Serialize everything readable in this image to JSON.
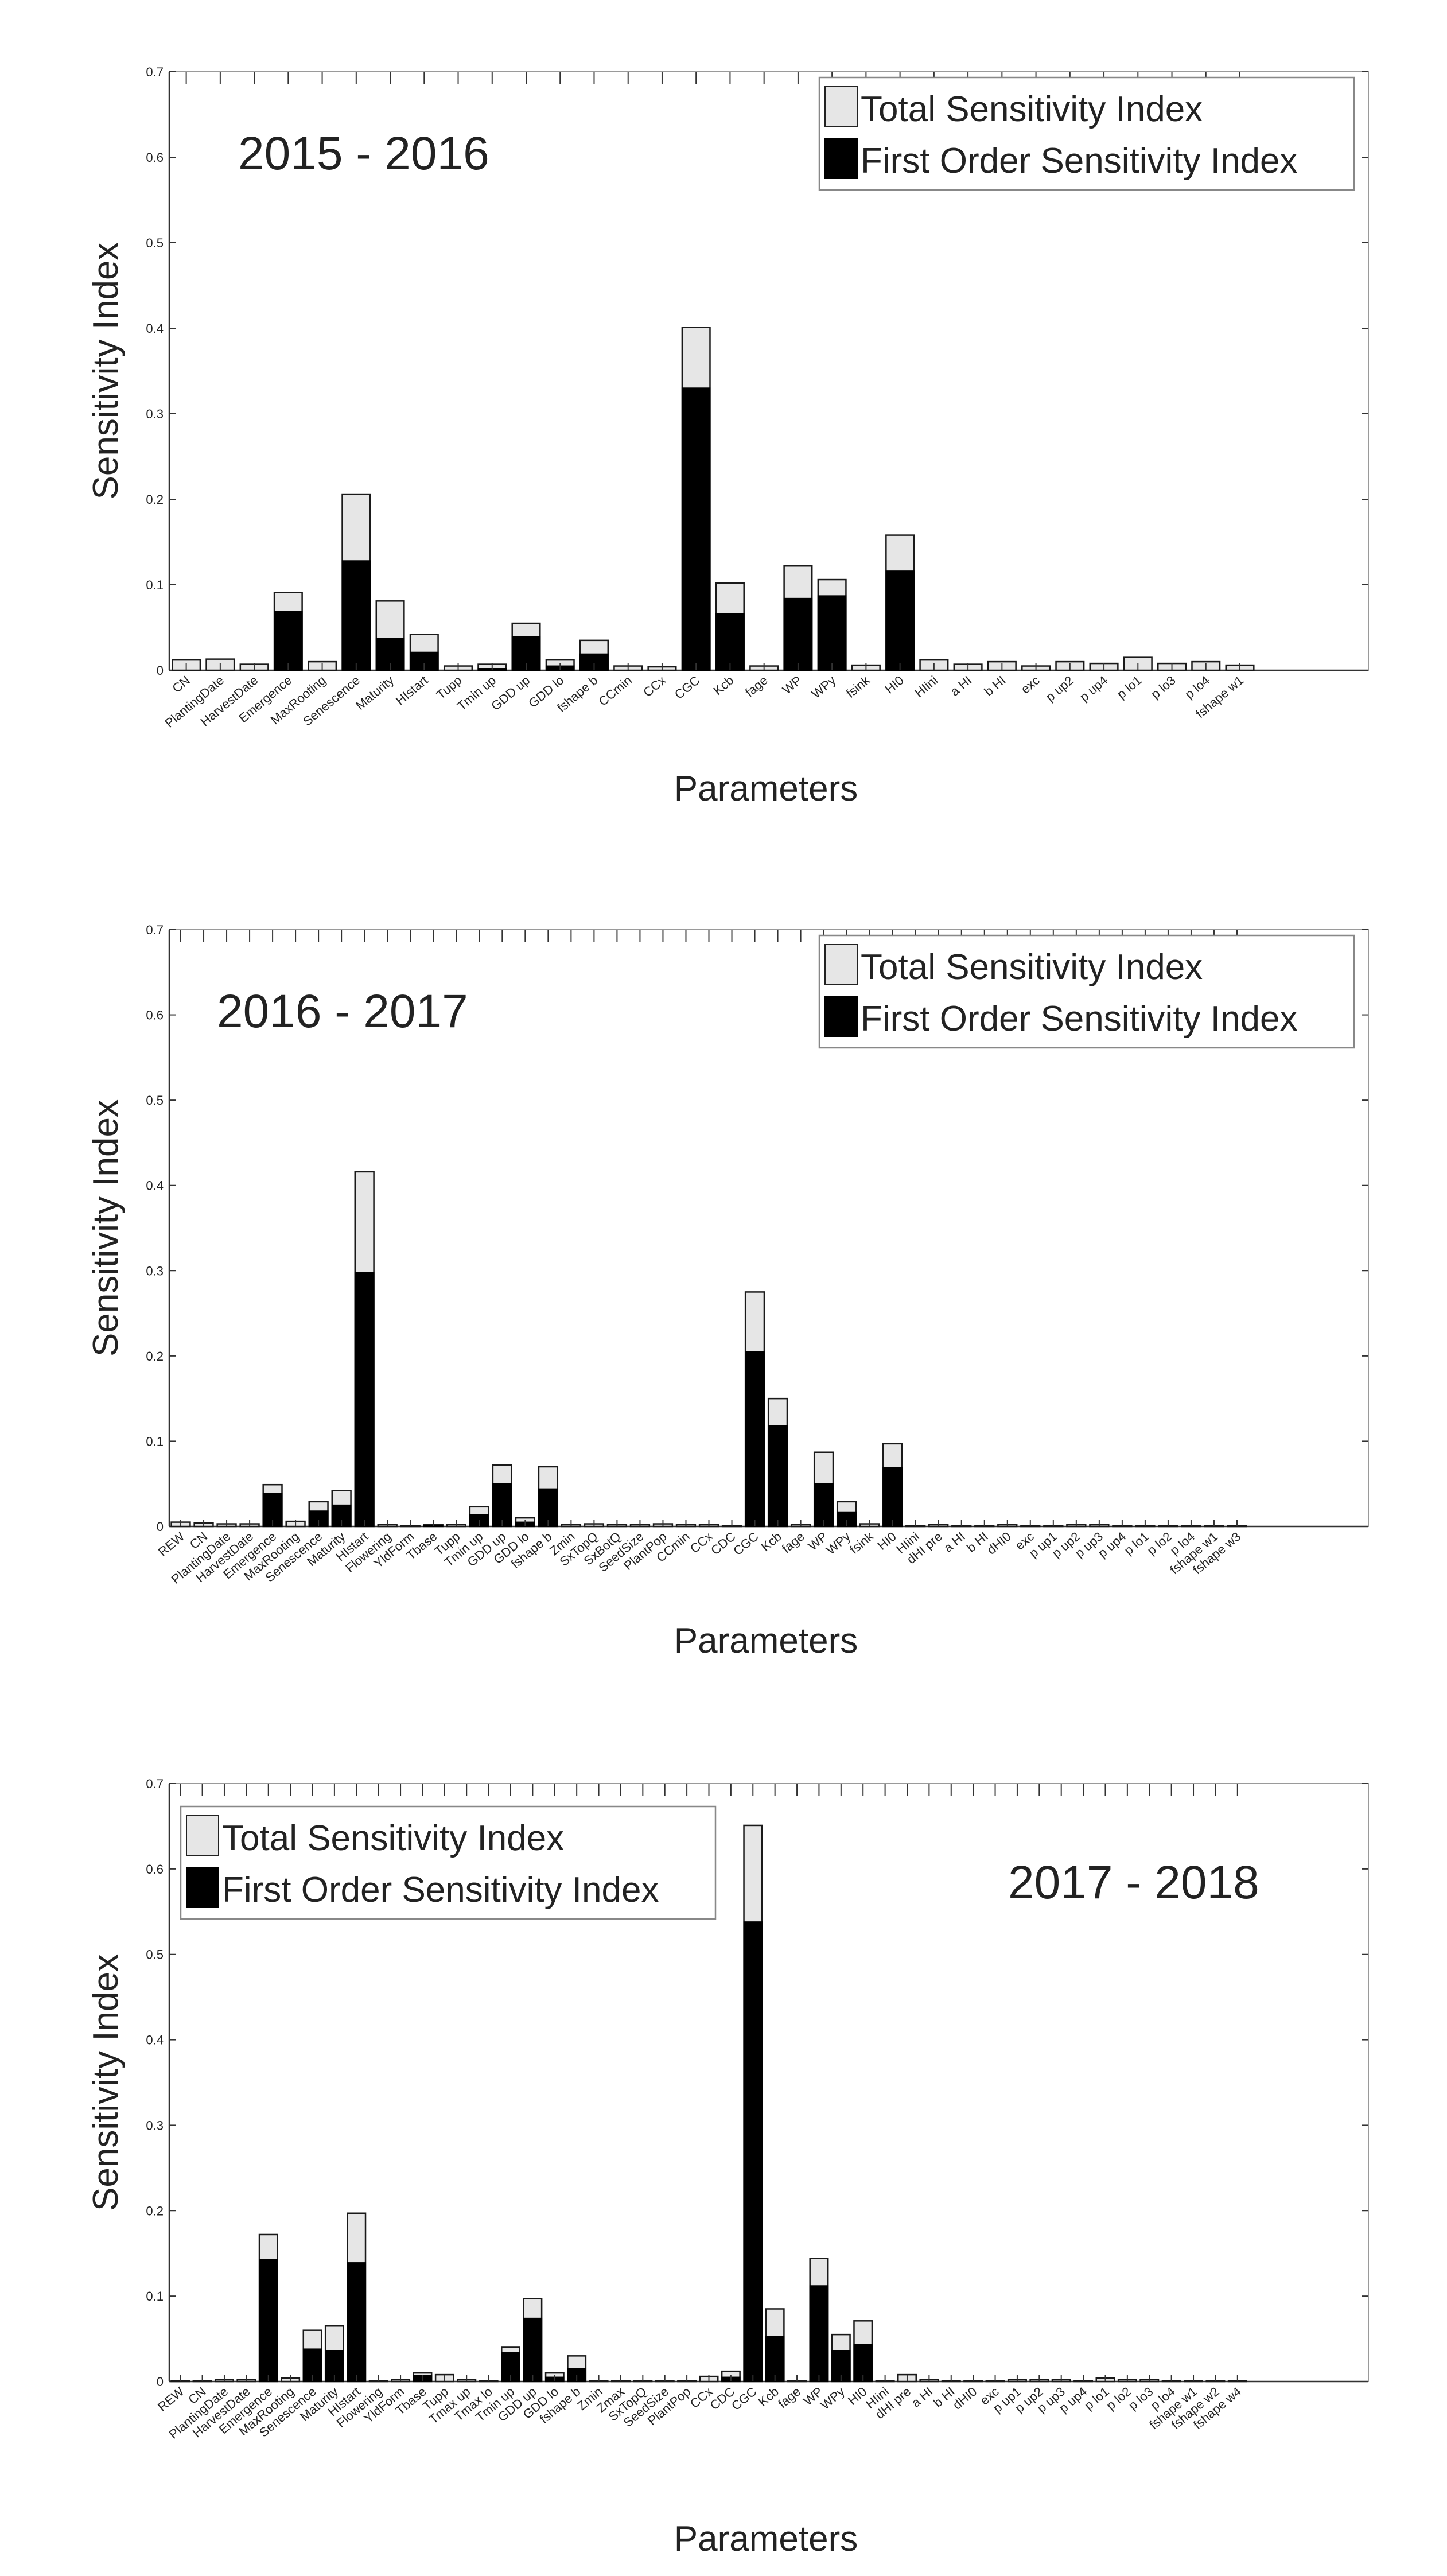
{
  "colors": {
    "total": "#e6e6e6",
    "first": "#000000",
    "axis": "#333333"
  },
  "legend_labels": {
    "total": "Total Sensitivity Index",
    "first": "First Order Sensitivity Index"
  },
  "chart_data": [
    {
      "type": "bar",
      "title": "2015 - 2016",
      "xlabel": "Parameters",
      "ylabel": "Sensitivity Index",
      "ylim": [
        0,
        0.7
      ],
      "yticks": [
        "0",
        "0.1",
        "0.2",
        "0.3",
        "0.4",
        "0.5",
        "0.6",
        "0.7"
      ],
      "legend": "top-right",
      "label_position": "top-left",
      "categories": [
        "CN",
        "PlantingDate",
        "HarvestDate",
        "Emergence",
        "MaxRooting",
        "Senescence",
        "Maturity",
        "HIstart",
        "Tupp",
        "Tmin up",
        "GDD up",
        "GDD lo",
        "fshape b",
        "CCmin",
        "CCx",
        "CGC",
        "Kcb",
        "fage",
        "WP",
        "WPy",
        "fsink",
        "HI0",
        "HIini",
        "a HI",
        "b HI",
        "exc",
        "p up2",
        "p up4",
        "p lo1",
        "p lo3",
        "p lo4",
        "fshape w1"
      ],
      "series": [
        {
          "name": "Total Sensitivity Index",
          "values": [
            0.012,
            0.013,
            0.007,
            0.091,
            0.01,
            0.206,
            0.081,
            0.042,
            0.005,
            0.007,
            0.055,
            0.012,
            0.035,
            0.005,
            0.004,
            0.401,
            0.102,
            0.005,
            0.122,
            0.106,
            0.006,
            0.158,
            0.012,
            0.007,
            0.01,
            0.005,
            0.01,
            0.008,
            0.015,
            0.008,
            0.01,
            0.006
          ]
        },
        {
          "name": "First Order Sensitivity Index",
          "values": [
            0,
            0,
            0,
            0.069,
            0,
            0.128,
            0.037,
            0.021,
            0,
            0.002,
            0.039,
            0.005,
            0.019,
            0,
            0,
            0.33,
            0.066,
            0,
            0.084,
            0.087,
            0,
            0.116,
            0,
            0,
            0,
            0,
            0,
            0,
            0,
            0,
            0,
            0
          ]
        }
      ]
    },
    {
      "type": "bar",
      "title": "2016 - 2017",
      "xlabel": "Parameters",
      "ylabel": "Sensitivity Index",
      "ylim": [
        0,
        0.7
      ],
      "yticks": [
        "0",
        "0.1",
        "0.2",
        "0.3",
        "0.4",
        "0.5",
        "0.6",
        "0.7"
      ],
      "legend": "top-right",
      "label_position": "top-left",
      "categories": [
        "REW",
        "CN",
        "PlantingDate",
        "HarvestDate",
        "Emergence",
        "MaxRooting",
        "Senescence",
        "Maturity",
        "HIstart",
        "Flowering",
        "YldForm",
        "Tbase",
        "Tupp",
        "Tmin up",
        "GDD up",
        "GDD lo",
        "fshape b",
        "Zmin",
        "SxTopQ",
        "SxBotQ",
        "SeedSize",
        "PlantPop",
        "CCmin",
        "CCx",
        "CDC",
        "CGC",
        "Kcb",
        "fage",
        "WP",
        "WPy",
        "fsink",
        "HI0",
        "HIini",
        "dHI pre",
        "a HI",
        "b HI",
        "dHI0",
        "exc",
        "p up1",
        "p up2",
        "p up3",
        "p up4",
        "p lo1",
        "p lo2",
        "p lo4",
        "fshape w1",
        "fshape w3"
      ],
      "series": [
        {
          "name": "Total Sensitivity Index",
          "values": [
            0.005,
            0.004,
            0.003,
            0.003,
            0.049,
            0.006,
            0.029,
            0.042,
            0.416,
            0.002,
            0.001,
            0.002,
            0.002,
            0.023,
            0.072,
            0.01,
            0.07,
            0.002,
            0.003,
            0.002,
            0.002,
            0.003,
            0.002,
            0.002,
            0.001,
            0.275,
            0.15,
            0.002,
            0.087,
            0.029,
            0.003,
            0.097,
            0.001,
            0.002,
            0.001,
            0.001,
            0.002,
            0.001,
            0.001,
            0.002,
            0.002,
            0.001,
            0.001,
            0.001,
            0.001,
            0.001,
            0.001
          ]
        },
        {
          "name": "First Order Sensitivity Index",
          "values": [
            0,
            0,
            0,
            0,
            0.039,
            0,
            0.018,
            0.025,
            0.298,
            0,
            0,
            0.001,
            0,
            0.014,
            0.05,
            0.005,
            0.044,
            0,
            0,
            0,
            0,
            0,
            0,
            0,
            0,
            0.205,
            0.118,
            0,
            0.05,
            0.017,
            0,
            0.069,
            0,
            0,
            0,
            0,
            0,
            0,
            0,
            0,
            0,
            0,
            0,
            0,
            0,
            0,
            0
          ]
        }
      ]
    },
    {
      "type": "bar",
      "title": "2017 - 2018",
      "xlabel": "Parameters",
      "ylabel": "Sensitivity Index",
      "ylim": [
        0,
        0.7
      ],
      "yticks": [
        "0",
        "0.1",
        "0.2",
        "0.3",
        "0.4",
        "0.5",
        "0.6",
        "0.7"
      ],
      "legend": "top-left",
      "label_position": "top-right",
      "categories": [
        "REW",
        "CN",
        "PlantingDate",
        "HarvestDate",
        "Emergence",
        "MaxRooting",
        "Senescence",
        "Maturity",
        "HIstart",
        "Flowering",
        "YldForm",
        "Tbase",
        "Tupp",
        "Tmax up",
        "Tmax lo",
        "Tmin up",
        "GDD up",
        "GDD lo",
        "fshape b",
        "Zmin",
        "Zmax",
        "SxTopQ",
        "SeedSize",
        "PlantPop",
        "CCx",
        "CDC",
        "CGC",
        "Kcb",
        "fage",
        "WP",
        "WPy",
        "HI0",
        "HIini",
        "dHI pre",
        "a HI",
        "b HI",
        "dHI0",
        "exc",
        "p up1",
        "p up2",
        "p up3",
        "p up4",
        "p lo1",
        "p lo2",
        "p lo3",
        "p lo4",
        "fshape w1",
        "fshape w2",
        "fshape w4"
      ],
      "series": [
        {
          "name": "Total Sensitivity Index",
          "values": [
            0.001,
            0.001,
            0.002,
            0.002,
            0.172,
            0.004,
            0.06,
            0.065,
            0.197,
            0.001,
            0.002,
            0.01,
            0.008,
            0.002,
            0.001,
            0.04,
            0.097,
            0.01,
            0.03,
            0.001,
            0.001,
            0.001,
            0.001,
            0.001,
            0.006,
            0.012,
            0.651,
            0.085,
            0.001,
            0.144,
            0.055,
            0.071,
            0.001,
            0.008,
            0.002,
            0.001,
            0.001,
            0.001,
            0.002,
            0.002,
            0.002,
            0.001,
            0.004,
            0.002,
            0.002,
            0.001,
            0.001,
            0.001,
            0.001
          ]
        },
        {
          "name": "First Order Sensitivity Index",
          "values": [
            0,
            0,
            0,
            0,
            0.143,
            0,
            0.038,
            0.036,
            0.139,
            0,
            0,
            0.007,
            0,
            0,
            0,
            0.034,
            0.074,
            0.005,
            0.015,
            0,
            0,
            0,
            0,
            0,
            0,
            0.005,
            0.538,
            0.053,
            0,
            0.112,
            0.036,
            0.043,
            0,
            0,
            0,
            0,
            0,
            0,
            0,
            0,
            0,
            0,
            0,
            0,
            0,
            0,
            0,
            0,
            0
          ]
        }
      ]
    }
  ]
}
